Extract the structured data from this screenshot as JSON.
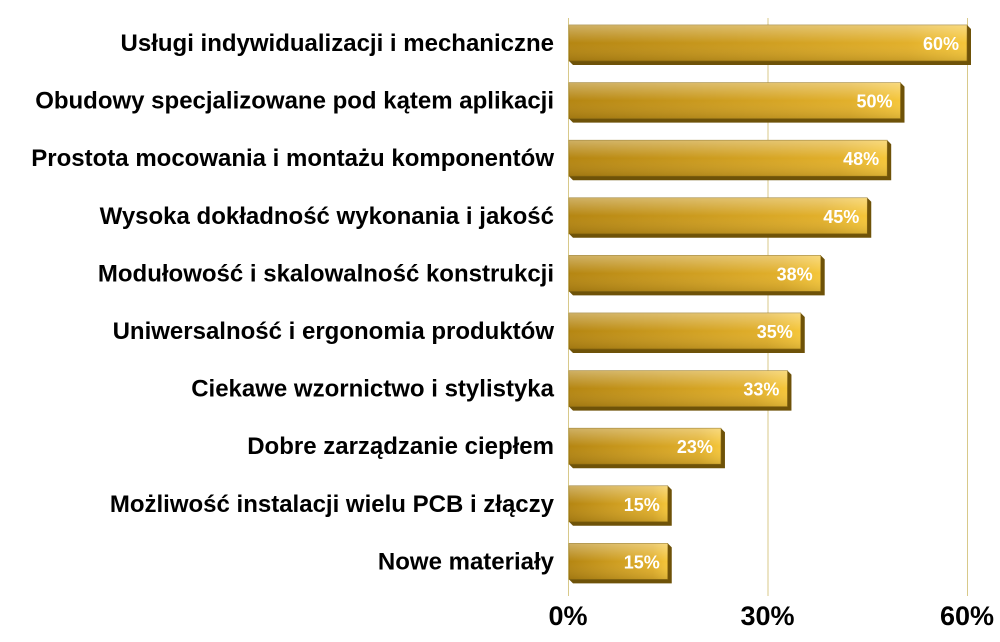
{
  "chart_data": {
    "type": "bar",
    "orientation": "horizontal",
    "categories": [
      "Usługi indywidualizacji i mechaniczne",
      "Obudowy specjalizowane pod kątem aplikacji",
      "Prostota mocowania i montażu komponentów",
      "Wysoka dokładność wykonania i jakość",
      "Modułowość i skalowalność konstrukcji",
      "Uniwersalność i ergonomia produktów",
      "Ciekawe wzornictwo i stylistyka",
      "Dobre zarządzanie ciepłem",
      "Możliwość instalacji wielu PCB i złączy",
      "Nowe materiały"
    ],
    "values": [
      60,
      50,
      48,
      45,
      38,
      35,
      33,
      23,
      15,
      15
    ],
    "data_labels": [
      "60%",
      "50%",
      "48%",
      "45%",
      "38%",
      "35%",
      "33%",
      "23%",
      "15%",
      "15%"
    ],
    "title": "",
    "xlabel": "",
    "ylabel": "",
    "xlim": [
      0,
      60
    ],
    "x_ticks": [
      0,
      30,
      60
    ],
    "x_tick_labels": [
      "0%",
      "30%",
      "60%"
    ],
    "grid": "vertical",
    "legend": "none",
    "colors": {
      "bar_light": "#f5c63a",
      "bar_mid": "#e2b02b",
      "bar_dark": "#b58612",
      "bar_shadow": "#6e5208",
      "gridline": "#d8c98a",
      "data_label": "#ffffff",
      "text": "#000000"
    }
  }
}
